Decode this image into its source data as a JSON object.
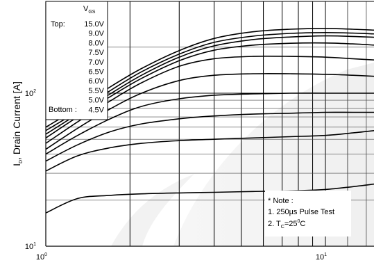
{
  "chart_data": {
    "type": "line",
    "title": "",
    "xlabel": "",
    "ylabel": {
      "main": "I",
      "sub": "D",
      "rest": ", Drain Current [A]"
    },
    "x_scale": "log",
    "y_scale": "log",
    "xlim": [
      1,
      15
    ],
    "ylim": [
      10,
      300
    ],
    "x_ticks": [
      {
        "value": 1,
        "base": "10",
        "exp": "0"
      },
      {
        "value": 10,
        "base": "10",
        "exp": "1"
      }
    ],
    "y_ticks": [
      {
        "value": 10,
        "base": "10",
        "exp": "1"
      },
      {
        "value": 100,
        "base": "10",
        "exp": "2"
      }
    ],
    "grid": true,
    "legend": {
      "placement": "top-left",
      "header": {
        "main": "V",
        "sub": "GS"
      },
      "top_label": "Top:",
      "bottom_label": "Bottom :",
      "entries": [
        "15.0V",
        "9.0V",
        "8.0V",
        "7.5V",
        "7.0V",
        "6.5V",
        "6.0V",
        "5.5V",
        "5.0V",
        "4.5V"
      ]
    },
    "note": {
      "placement": "bottom-right",
      "title": "* Note :",
      "line1": "1. 250µs Pulse Test",
      "line2_prefix": "2. T",
      "line2_sub": "C",
      "line2_eq": "=25",
      "line2_sup": "0",
      "line2_end": "C"
    },
    "x": [
      1.0,
      1.3,
      1.7,
      2.2,
      3.0,
      4.0,
      5.5,
      7.5,
      10.0,
      12.5,
      15.0
    ],
    "series": [
      {
        "values": [
          60,
          80,
          110,
          145,
          190,
          228,
          252,
          262,
          265,
          262,
          258
        ]
      },
      {
        "values": [
          57,
          76,
          104,
          138,
          180,
          215,
          236,
          246,
          249,
          247,
          244
        ]
      },
      {
        "values": [
          54,
          73,
          99,
          131,
          172,
          204,
          224,
          233,
          237,
          235,
          232
        ]
      },
      {
        "values": [
          51,
          70,
          95,
          125,
          163,
          191,
          206,
          212,
          213,
          210,
          206
        ]
      },
      {
        "values": [
          47,
          65,
          89,
          117,
          150,
          168,
          174,
          174,
          172,
          168,
          165
        ]
      },
      {
        "values": [
          43,
          59,
          79,
          100,
          121,
          131,
          134,
          134,
          133,
          131,
          129
        ]
      },
      {
        "values": [
          40,
          53,
          68,
          82,
          92,
          97,
          99,
          100,
          100,
          100,
          100
        ]
      },
      {
        "values": [
          36,
          46,
          56,
          63,
          68,
          71,
          73,
          74,
          75,
          75,
          75
        ]
      },
      {
        "values": [
          31,
          39,
          44,
          47,
          49,
          50,
          51,
          52,
          53,
          55,
          57
        ]
      },
      {
        "values": [
          16.5,
          20.5,
          21.5,
          22,
          22.3,
          22.5,
          22.8,
          23,
          23.5,
          24.5,
          25.5
        ]
      }
    ]
  }
}
